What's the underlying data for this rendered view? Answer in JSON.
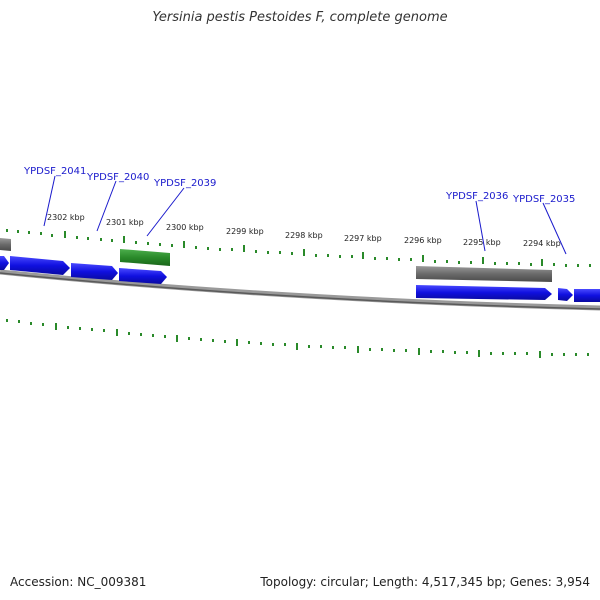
{
  "title": "Yersinia pestis Pestoides F, complete genome",
  "footer": {
    "accession": "Accession: NC_009381",
    "summary": "Topology: circular; Length: 4,517,345 bp; Genes: 3,954"
  },
  "colors": {
    "forward_gene": "#1414e6",
    "reverse_gene_gray": "#707070",
    "reverse_gene_green": "#2a8a2a",
    "backbone": "#8a8a8a",
    "tick": "#2a8a2a",
    "label": "#1a1acc"
  },
  "kbp_labels": [
    "2302 kbp",
    "2301 kbp",
    "2300 kbp",
    "2299 kbp",
    "2298 kbp",
    "2297 kbp",
    "2296 kbp",
    "2295 kbp",
    "2294 kbp"
  ],
  "gene_labels": [
    "YPDSF_2041",
    "YPDSF_2040",
    "YPDSF_2039",
    "YPDSF_2036",
    "YPDSF_2035"
  ]
}
